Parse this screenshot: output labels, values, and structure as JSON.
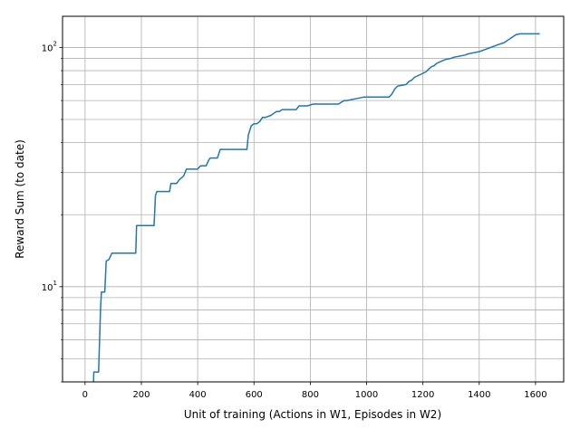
{
  "colors": {
    "series": "#1f77b4",
    "grid": "#b0b0b0",
    "axes": "#000000",
    "background": "#ffffff"
  },
  "chart_data": {
    "type": "line",
    "title": "",
    "xlabel": "Unit of training (Actions in W1, Episodes in W2)",
    "ylabel": "Reward Sum (to date)",
    "xlim": [
      -80,
      1700
    ],
    "ylim": [
      4,
      135
    ],
    "yscale": "log",
    "grid": true,
    "legend": "none",
    "x_ticks": [
      0,
      200,
      400,
      600,
      800,
      1000,
      1200,
      1400,
      1600
    ],
    "y_major_ticks": [
      10,
      100
    ],
    "y_major_labels": [
      "10",
      "10"
    ],
    "y_major_exponents": [
      "1",
      "2"
    ],
    "y_minor_ticks": [
      4,
      5,
      6,
      7,
      8,
      9,
      20,
      30,
      40,
      50,
      60,
      70,
      80,
      90
    ],
    "series": [
      {
        "x": [
          30,
          31,
          48,
          55,
          58,
          70,
          75,
          85,
          95,
          180,
          183,
          245,
          250,
          255,
          300,
          305,
          325,
          335,
          350,
          360,
          380,
          400,
          410,
          430,
          440,
          445,
          470,
          480,
          485,
          555,
          575,
          580,
          585,
          590,
          600,
          610,
          620,
          630,
          640,
          660,
          670,
          680,
          690,
          700,
          715,
          750,
          760,
          780,
          790,
          810,
          860,
          900,
          910,
          920,
          930,
          960,
          990,
          1000,
          1050,
          1060,
          1070,
          1080,
          1090,
          1100,
          1110,
          1140,
          1150,
          1160,
          1170,
          1180,
          1190,
          1200,
          1210,
          1220,
          1230,
          1240,
          1250,
          1260,
          1270,
          1280,
          1300,
          1310,
          1350,
          1360,
          1380,
          1400,
          1410,
          1420,
          1440,
          1450,
          1470,
          1480,
          1490,
          1500,
          1510,
          1520,
          1530,
          1545,
          1560,
          1600,
          1615
        ],
        "y": [
          4,
          4.4,
          4.4,
          8,
          9.5,
          9.5,
          12.8,
          13,
          13.8,
          13.8,
          18,
          18,
          24,
          25,
          25,
          27,
          27,
          28,
          29,
          31,
          31,
          31,
          32,
          32,
          34,
          34.5,
          34.5,
          37.5,
          37.5,
          37.5,
          37.5,
          43,
          45,
          47,
          48,
          48,
          49,
          51,
          51,
          52,
          53,
          54,
          54,
          55,
          55,
          55,
          57,
          57,
          57,
          58,
          58,
          58,
          59,
          60,
          60,
          61,
          62,
          62,
          62,
          62,
          62,
          62,
          64,
          67,
          69,
          70,
          72,
          73,
          75,
          76,
          77,
          78,
          79,
          81,
          83,
          84,
          86,
          87,
          88,
          89,
          90,
          91,
          93,
          94,
          95,
          96,
          97,
          98,
          100,
          101,
          103,
          104,
          105,
          107,
          109,
          111,
          113,
          114,
          114,
          114,
          114
        ]
      }
    ]
  }
}
